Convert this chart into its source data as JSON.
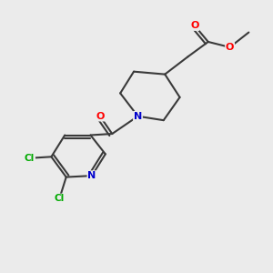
{
  "background_color": "#ebebeb",
  "bond_color": "#3a3a3a",
  "atom_colors": {
    "O": "#ff0000",
    "N": "#0000cc",
    "Cl": "#00aa00",
    "C": "#3a3a3a"
  },
  "figsize": [
    3.0,
    3.0
  ],
  "dpi": 100
}
